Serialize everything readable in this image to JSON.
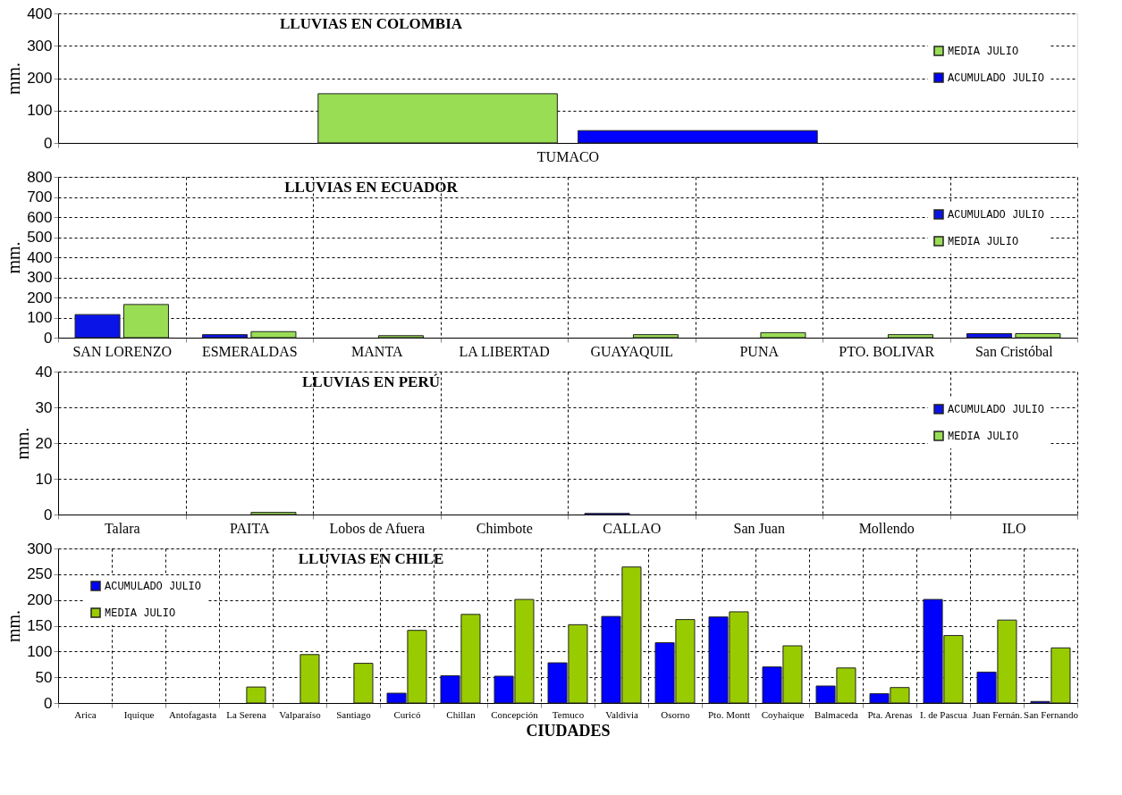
{
  "chart_data": [
    {
      "type": "bar",
      "title": "LLUVIAS EN COLOMBIA",
      "ylabel": "mm.",
      "categories": [
        "TUMACO"
      ],
      "ylim": [
        0,
        400
      ],
      "yticks": [
        0,
        100,
        200,
        300,
        400
      ],
      "grid": "y",
      "legend": "top right",
      "series": [
        {
          "name": "MEDIA JULIO",
          "color": "#99dd55",
          "values": [
            152
          ]
        },
        {
          "name": "ACUMULADO JULIO",
          "color": "#0000ff",
          "values": [
            38
          ]
        }
      ]
    },
    {
      "type": "bar",
      "title": "LLUVIAS EN ECUADOR",
      "ylabel": "mm.",
      "categories": [
        "SAN LORENZO",
        "ESMERALDAS",
        "MANTA",
        "LA LIBERTAD",
        "GUAYAQUIL",
        "PUNA",
        "PTO. BOLIVAR",
        "San Cristóbal"
      ],
      "ylim": [
        0,
        800
      ],
      "yticks": [
        0,
        100,
        200,
        300,
        400,
        500,
        600,
        700,
        800
      ],
      "grid": true,
      "legend": "top right",
      "series": [
        {
          "name": "ACUMULADO JULIO",
          "color": "#0a14e6",
          "values": [
            115,
            15,
            0,
            0,
            0,
            0,
            0,
            20
          ]
        },
        {
          "name": "MEDIA JULIO",
          "color": "#99dd55",
          "values": [
            165,
            30,
            10,
            0,
            15,
            25,
            15,
            20
          ]
        }
      ]
    },
    {
      "type": "bar",
      "title": "LLUVIAS EN PERÚ",
      "ylabel": "mm.",
      "categories": [
        "Talara",
        "PAITA",
        "Lobos de Afuera",
        "Chimbote",
        "CALLAO",
        "San Juan",
        "Mollendo",
        "ILO"
      ],
      "ylim": [
        0,
        40
      ],
      "yticks": [
        0,
        10,
        20,
        30,
        40
      ],
      "grid": true,
      "legend": "top right",
      "series": [
        {
          "name": "ACUMULADO JULIO",
          "color": "#0a14e6",
          "values": [
            0,
            0,
            0,
            0,
            0.3,
            0,
            0,
            0
          ]
        },
        {
          "name": "MEDIA JULIO",
          "color": "#99dd55",
          "values": [
            0,
            0.6,
            0,
            0,
            0,
            0,
            0,
            0
          ]
        }
      ]
    },
    {
      "type": "bar",
      "title": "LLUVIAS EN CHILE",
      "ylabel": "mm.",
      "xlabel": "CIUDADES",
      "categories": [
        "Arica",
        "Iquique",
        "Antofagasta",
        "La Serena",
        "Valparaíso",
        "Santiago",
        "Curicó",
        "Chillan",
        "Concepción",
        "Temuco",
        "Valdivia",
        "Osorno",
        "Pto. Montt",
        "Coyhaique",
        "Balmaceda",
        "Pta. Arenas",
        "I. de Pascua",
        "Juan Fernán.",
        "San Fernando"
      ],
      "ylim": [
        0,
        300
      ],
      "yticks": [
        0,
        50,
        100,
        150,
        200,
        250,
        300
      ],
      "grid": true,
      "legend": "top left",
      "series": [
        {
          "name": "ACUMULADO JULIO",
          "color": "#0000ff",
          "values": [
            0,
            0,
            0,
            0,
            0,
            0,
            19,
            53,
            52,
            78,
            168,
            117,
            167,
            70,
            33,
            18,
            201,
            60,
            3
          ]
        },
        {
          "name": "MEDIA JULIO",
          "color": "#99cc00",
          "values": [
            0,
            0,
            0,
            31,
            94,
            77,
            141,
            172,
            201,
            152,
            264,
            162,
            177,
            111,
            68,
            30,
            131,
            161,
            107
          ]
        }
      ]
    }
  ]
}
